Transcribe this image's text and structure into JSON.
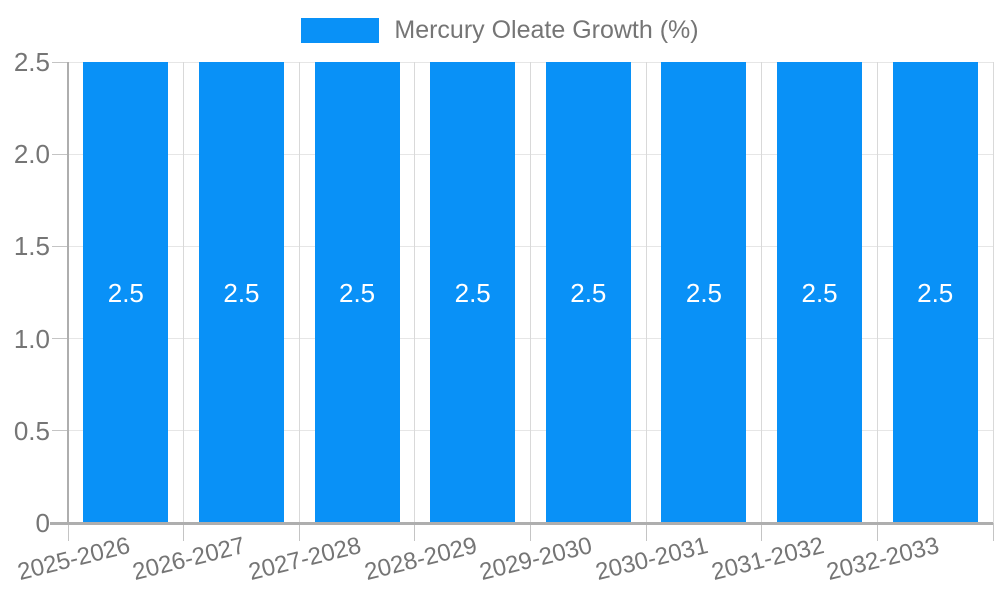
{
  "chart_data": {
    "type": "bar",
    "title": "Mercury Oleate Growth (%)",
    "legend": {
      "position": "top",
      "entries": [
        "Mercury Oleate Growth (%)"
      ]
    },
    "categories": [
      "2025-2026",
      "2026-2027",
      "2027-2028",
      "2028-2029",
      "2029-2030",
      "2030-2031",
      "2031-2032",
      "2032-2033"
    ],
    "series": [
      {
        "name": "Mercury Oleate Growth (%)",
        "values": [
          2.5,
          2.5,
          2.5,
          2.5,
          2.5,
          2.5,
          2.5,
          2.5
        ],
        "value_labels": [
          "2.5",
          "2.5",
          "2.5",
          "2.5",
          "2.5",
          "2.5",
          "2.5",
          "2.5"
        ]
      }
    ],
    "xlabel": "",
    "ylabel": "",
    "ylim": [
      0,
      2.5
    ],
    "yticks": [
      {
        "value": 0,
        "label": "0"
      },
      {
        "value": 0.5,
        "label": "0.5"
      },
      {
        "value": 1,
        "label": "1.0"
      },
      {
        "value": 1.5,
        "label": "1.5"
      },
      {
        "value": 2,
        "label": "2.0"
      },
      {
        "value": 2.5,
        "label": "2.5"
      }
    ],
    "grid": true,
    "x_label_rotation_deg": -14,
    "colors": {
      "bar": "#0991f7",
      "bar_label": "#ffffff",
      "axis_line": "#aeaeae",
      "grid_horizontal": "#e6e6e6",
      "grid_vertical": "#d9d9d9",
      "tick": "#c4c4c4",
      "text": "#757575",
      "background": "#ffffff"
    }
  }
}
